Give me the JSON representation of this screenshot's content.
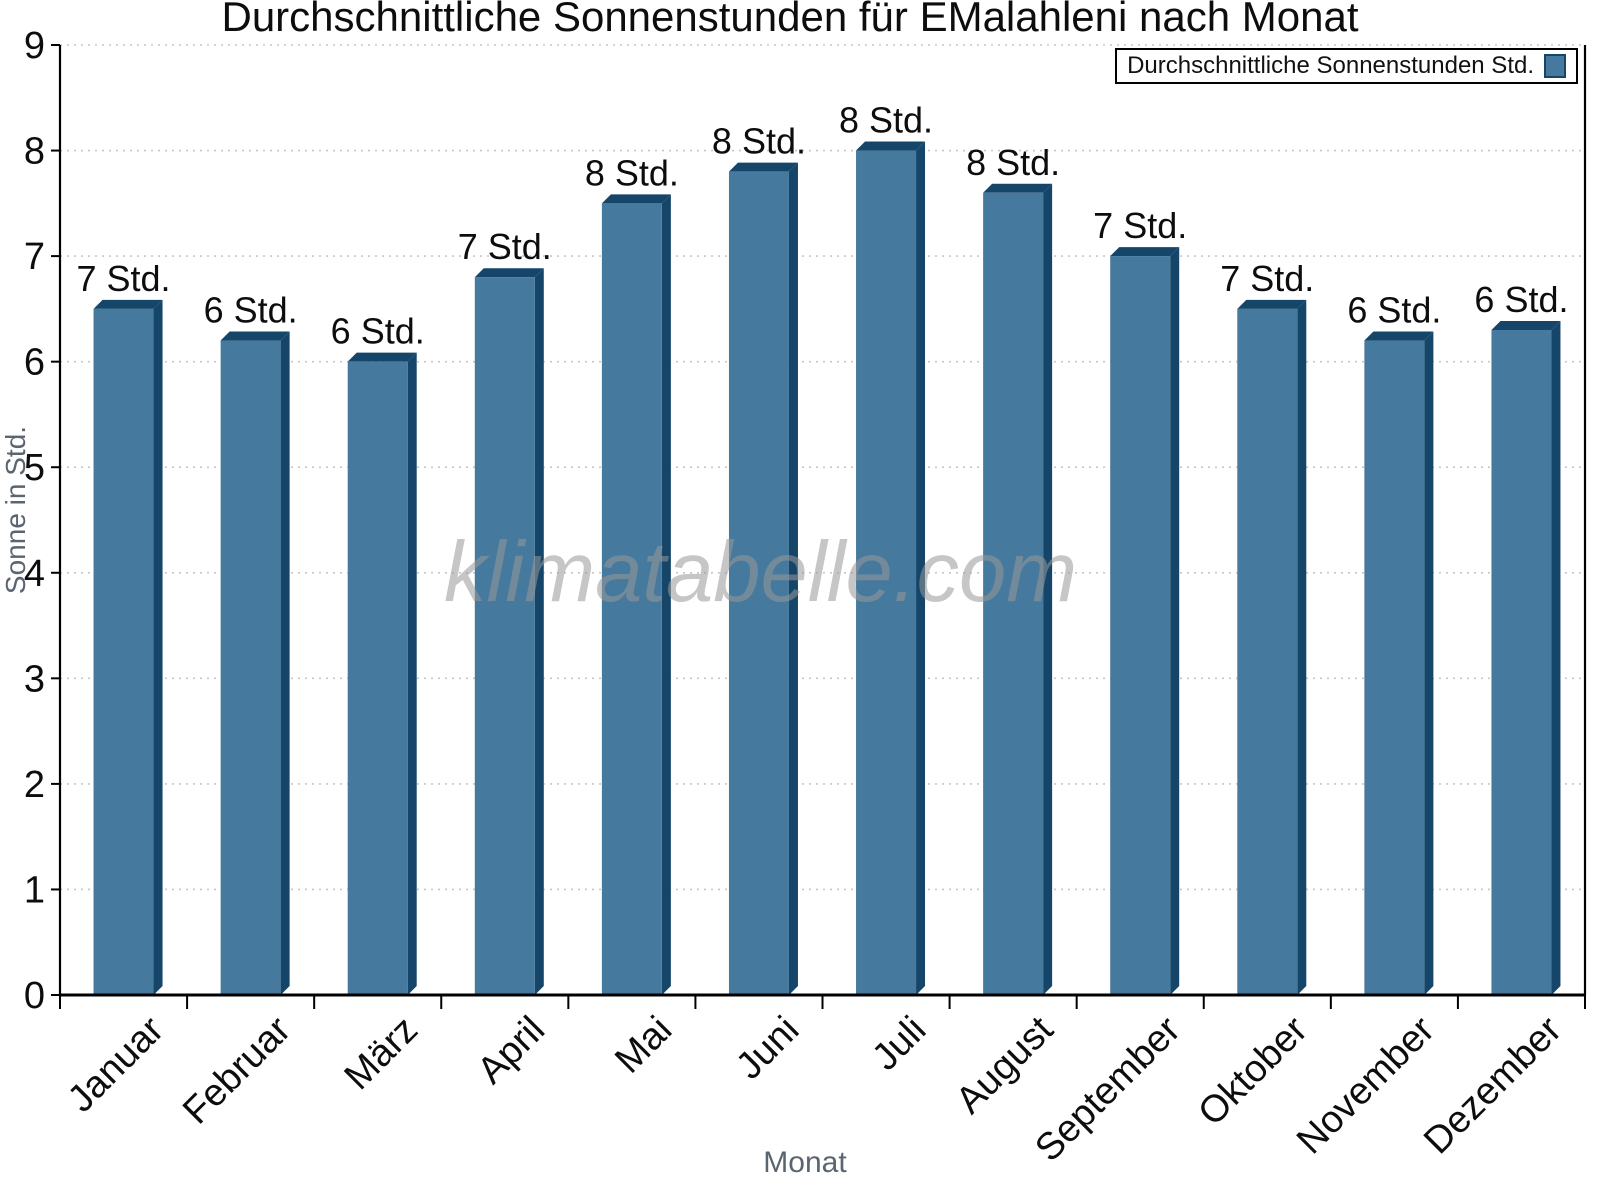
{
  "chart_data": {
    "type": "bar",
    "title": "Durchschnittliche Sonnenstunden für EMalahleni nach Monat",
    "xlabel": "Monat",
    "ylabel": "Sonne in Std.",
    "legend_label": "Durchschnittliche Sonnenstunden Std.",
    "legend_position": "top-right",
    "watermark": "klimatabelle.com",
    "categories": [
      "Januar",
      "Februar",
      "März",
      "April",
      "Mai",
      "Juni",
      "Juli",
      "August",
      "September",
      "Oktober",
      "November",
      "Dezember"
    ],
    "values": [
      6.5,
      6.2,
      6.0,
      6.8,
      7.5,
      7.8,
      8.0,
      7.6,
      7.0,
      6.5,
      6.2,
      6.3
    ],
    "bar_labels": [
      "7 Std.",
      "6 Std.",
      "6 Std.",
      "7 Std.",
      "8 Std.",
      "8 Std.",
      "8 Std.",
      "8 Std.",
      "7 Std.",
      "7 Std.",
      "6 Std.",
      "6 Std."
    ],
    "ylim": [
      0,
      9
    ],
    "yticks": [
      0,
      1,
      2,
      3,
      4,
      5,
      6,
      7,
      8,
      9
    ],
    "grid": "horizontal-dotted",
    "colors": {
      "bar_face": "#45799D",
      "bar_side": "#15466A",
      "axis": "#000000",
      "grid": "#c6c6c6",
      "text": "#0d0d0d",
      "muted_label": "#5a6570",
      "watermark": "#999999"
    }
  }
}
